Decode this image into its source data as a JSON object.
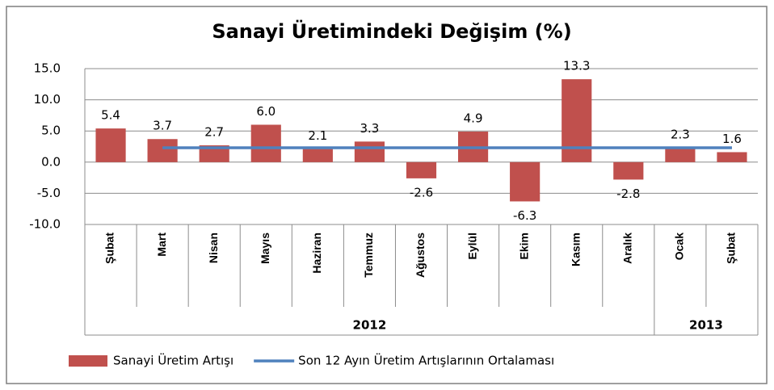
{
  "chart_data": {
    "type": "bar",
    "title": "Sanayi Üretimindeki Değişim (%)",
    "groups": [
      {
        "name": "2012",
        "categories": [
          "Şubat",
          "Mart",
          "Nisan",
          "Mayıs",
          "Haziran",
          "Temmuz",
          "Ağustos",
          "Eylül",
          "Ekim",
          "Kasım",
          "Aralık"
        ]
      },
      {
        "name": "2013",
        "categories": [
          "Ocak",
          "Şubat"
        ]
      }
    ],
    "series": [
      {
        "name": "Sanayi Üretim Artışı",
        "type": "bar",
        "color": "#c0504d",
        "values": [
          5.4,
          3.7,
          2.7,
          6.0,
          2.1,
          3.3,
          -2.6,
          4.9,
          -6.3,
          13.3,
          -2.8,
          2.3,
          1.6
        ],
        "value_labels": [
          "5.4",
          "3.7",
          "2.7",
          "6.0",
          "2.1",
          "3.3",
          "-2.6",
          "4.9",
          "-6.3",
          "13.3",
          "-2.8",
          "2.3",
          "1.6"
        ]
      },
      {
        "name": "Son 12 Ayın Üretim Artışlarının Ortalaması",
        "type": "line",
        "color": "#4f81bd",
        "values": [
          null,
          2.3,
          2.3,
          2.3,
          2.3,
          2.3,
          2.3,
          2.3,
          2.3,
          2.3,
          2.3,
          2.3,
          2.3
        ]
      }
    ],
    "ylim": [
      -10,
      15
    ],
    "yticks": [
      {
        "value": -10,
        "label": "-10.0"
      },
      {
        "value": -5,
        "label": "-5.0"
      },
      {
        "value": 0,
        "label": "0.0"
      },
      {
        "value": 5,
        "label": "5.0"
      },
      {
        "value": 10,
        "label": "10.0"
      },
      {
        "value": 15,
        "label": "15.0"
      }
    ],
    "grid": true,
    "legend": "bottom"
  }
}
